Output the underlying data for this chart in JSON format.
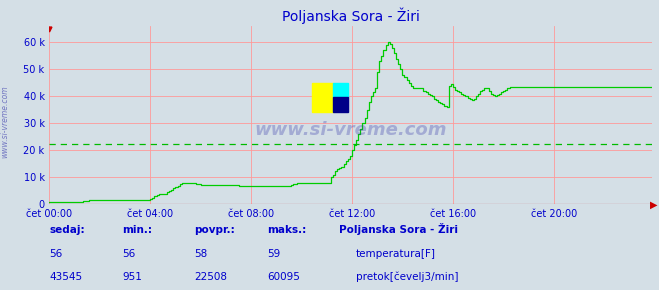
{
  "title": "Poljanska Sora - Žiri",
  "bg_color": "#d4dfe6",
  "plot_bg_color": "#d4dfe6",
  "grid_color": "#ff9999",
  "avg_line_color": "#00bb00",
  "avg_line_value": 22508,
  "ymax": 66000,
  "yticks": [
    0,
    10000,
    20000,
    30000,
    40000,
    50000,
    60000
  ],
  "ytick_labels": [
    "0",
    "10 k",
    "20 k",
    "30 k",
    "40 k",
    "50 k",
    "60 k"
  ],
  "xtick_labels": [
    "čet 00:00",
    "čet 04:00",
    "čet 08:00",
    "čet 12:00",
    "čet 16:00",
    "čet 20:00"
  ],
  "xtick_positions": [
    0,
    48,
    96,
    144,
    192,
    240
  ],
  "total_points": 288,
  "title_color": "#0000cc",
  "axis_label_color": "#0000cc",
  "flow_color": "#00cc00",
  "temp_color": "#cc0000",
  "watermark_color": "#3333aa",
  "legend_title": "Poljanska Sora - Žiri",
  "legend_title_color": "#0000cc",
  "label_sedaj": "sedaj:",
  "label_min": "min.:",
  "label_povpr": "povpr.:",
  "label_maks": "maks.:",
  "temp_sedaj": 56,
  "temp_min": 56,
  "temp_avg": 58,
  "temp_max": 59,
  "flow_sedaj": 43545,
  "flow_min": 951,
  "flow_avg": 22508,
  "flow_max": 60095,
  "label_temp": "temperatura[F]",
  "label_flow": "pretok[čevelj3/min]",
  "flow_data": [
    951,
    951,
    951,
    951,
    951,
    951,
    951,
    951,
    951,
    951,
    951,
    951,
    951,
    951,
    951,
    951,
    1100,
    1200,
    1400,
    1500,
    1500,
    1500,
    1500,
    1500,
    1500,
    1500,
    1500,
    1600,
    1700,
    1700,
    1700,
    1700,
    1700,
    1700,
    1700,
    1700,
    1700,
    1700,
    1700,
    1700,
    1700,
    1700,
    1700,
    1700,
    1700,
    1700,
    1700,
    1700,
    2000,
    2500,
    3000,
    3500,
    4000,
    4000,
    4000,
    4000,
    4500,
    5000,
    5500,
    6000,
    6500,
    7000,
    7500,
    7800,
    8000,
    8000,
    8000,
    8000,
    8000,
    7800,
    7600,
    7400,
    7200,
    7200,
    7200,
    7200,
    7200,
    7200,
    7200,
    7200,
    7200,
    7200,
    7200,
    7200,
    7200,
    7200,
    7200,
    7200,
    7200,
    7200,
    7000,
    6800,
    6800,
    6800,
    6800,
    6800,
    7000,
    7000,
    7000,
    7000,
    7000,
    7000,
    7000,
    7000,
    7000,
    7000,
    7000,
    7000,
    7000,
    7000,
    7000,
    7000,
    7000,
    7000,
    7000,
    7200,
    7400,
    7600,
    7800,
    8000,
    8000,
    8000,
    8000,
    8000,
    8000,
    8000,
    8000,
    8000,
    8000,
    8000,
    8000,
    8000,
    8000,
    8000,
    10000,
    11000,
    12500,
    13000,
    13500,
    14000,
    15000,
    16000,
    17000,
    18000,
    20000,
    22000,
    24000,
    26000,
    28000,
    30000,
    32000,
    35000,
    38000,
    40000,
    41500,
    43000,
    49000,
    53000,
    55000,
    57000,
    59000,
    60095,
    59500,
    58000,
    56000,
    54000,
    52000,
    50000,
    48000,
    47000,
    46000,
    45000,
    44000,
    43000,
    43000,
    43000,
    43000,
    43000,
    42000,
    41500,
    41000,
    40500,
    40000,
    39000,
    38500,
    38000,
    37500,
    37000,
    36500,
    36000,
    44000,
    44500,
    43500,
    42500,
    42000,
    41500,
    41000,
    40500,
    40000,
    39500,
    39000,
    38500,
    39000,
    40000,
    41000,
    42000,
    42500,
    43000,
    43000,
    42000,
    41000,
    40500,
    40000,
    40500,
    41000,
    41500,
    42000,
    42500,
    43000,
    43500,
    43545,
    43545,
    43545,
    43545,
    43545,
    43545,
    43545,
    43545,
    43545,
    43545,
    43545,
    43545,
    43545,
    43545,
    43545,
    43545,
    43545,
    43545,
    43545,
    43545,
    43545,
    43545,
    43545,
    43545,
    43545,
    43545,
    43545,
    43545,
    43545,
    43545,
    43545,
    43545,
    43545,
    43545,
    43545,
    43545,
    43545,
    43545,
    43545,
    43545,
    43545,
    43545,
    43545,
    43545,
    43545,
    43545,
    43545,
    43545,
    43545,
    43545,
    43545,
    43545,
    43545,
    43545,
    43545,
    43545,
    43545,
    43545,
    43545,
    43545,
    43545,
    43545,
    43545,
    43545,
    43545,
    43545,
    43545,
    43545
  ],
  "arrow_color": "#cc0000",
  "left_watermark": "www.si-vreme.com",
  "center_watermark": "www.si-vreme.com"
}
